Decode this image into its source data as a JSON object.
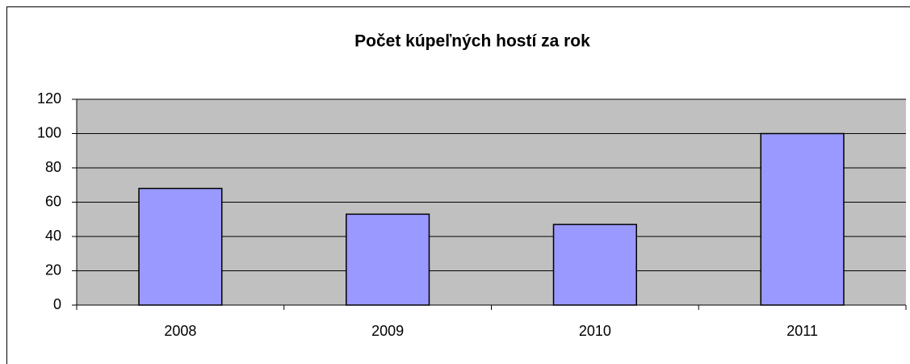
{
  "chart_data": {
    "type": "bar",
    "title": "Počet kúpeľných hostí za rok",
    "categories": [
      "2008",
      "2009",
      "2010",
      "2011"
    ],
    "values": [
      68,
      53,
      47,
      100
    ],
    "color": "#9999ff",
    "ylim": [
      0,
      120
    ],
    "yticks": [
      0,
      20,
      40,
      60,
      80,
      100,
      120
    ],
    "grid": true
  }
}
